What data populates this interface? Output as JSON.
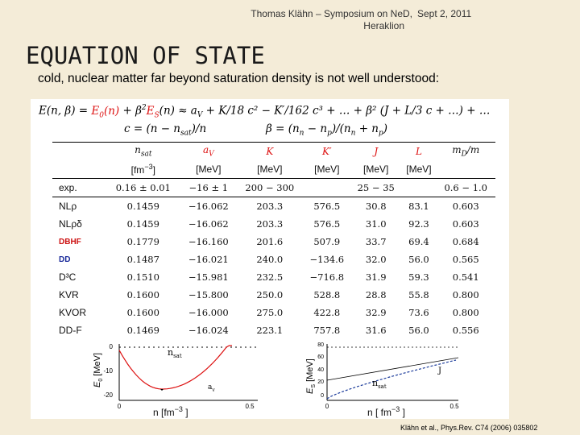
{
  "header": {
    "line1": "Thomas Klähn – Symposium on NeD,",
    "line2": "Heraklion",
    "date": "Sept 2, 2011"
  },
  "title": "EQUATION OF STATE",
  "subtitle": "cold, nuclear matter far beyond saturation density is not well understood:",
  "equations": {
    "eq1_lhs": "E(n, β) = ",
    "eq1_e0": "E",
    "eq1_e0_sub": "0",
    "eq1_e0_arg": "(n)",
    "eq1_plus": " + β",
    "eq1_beta_sup": "2",
    "eq1_es": "E",
    "eq1_es_sub": "S",
    "eq1_rest": "(n) ≈ a",
    "eq1_av_sub": "V",
    "eq1_tail": " + K/18 c² − K′/162 c³ + … + β² (J + L/3 c + …) + …",
    "eq2": "c = (n − n",
    "eq2_sub": "sat",
    "eq2_end": ")/n",
    "eq3": "β = (n",
    "eq3_rest": " − n",
    "eq3_end": ")/(n",
    "eq3_end2": " + n",
    "eq3_close": ")"
  },
  "table": {
    "headers": [
      "n_sat",
      "a_V",
      "K",
      "K′",
      "J",
      "L",
      "m_D/m"
    ],
    "header_display": [
      "n",
      "a",
      "K",
      "K′",
      "J",
      "L",
      "m"
    ],
    "header_subs": [
      "sat",
      "V",
      "",
      "",
      "",
      "",
      "D"
    ],
    "header_suffix": [
      "",
      "",
      "",
      "",
      "",
      "",
      "/m"
    ],
    "units": [
      "[fm",
      "[MeV]",
      "[MeV]",
      "[MeV]",
      "[MeV]",
      "[MeV]",
      ""
    ],
    "unit_sup": "−3",
    "unit_close": "]",
    "exp_row": {
      "label": "exp.",
      "nsat": "0.16 ± 0.01",
      "av": "−16 ± 1",
      "k": "200 − 300",
      "j": "25 − 35",
      "mdm": "0.6 − 1.0"
    },
    "rows": [
      {
        "label": "NLρ",
        "vals": [
          "0.1459",
          "−16.062",
          "203.3",
          "576.5",
          "30.8",
          "83.1",
          "0.603"
        ],
        "style": "plain"
      },
      {
        "label": "NLρδ",
        "vals": [
          "0.1459",
          "−16.062",
          "203.3",
          "576.5",
          "31.0",
          "92.3",
          "0.603"
        ],
        "style": "plain"
      },
      {
        "label": "DBHF",
        "vals": [
          "0.1779",
          "−16.160",
          "201.6",
          "507.9",
          "33.7",
          "69.4",
          "0.684"
        ],
        "style": "red"
      },
      {
        "label": "DD",
        "vals": [
          "0.1487",
          "−16.021",
          "240.0",
          "−134.6",
          "32.0",
          "56.0",
          "0.565"
        ],
        "style": "blue"
      },
      {
        "label": "D³C",
        "vals": [
          "0.1510",
          "−15.981",
          "232.5",
          "−716.8",
          "31.9",
          "59.3",
          "0.541"
        ],
        "style": "plain"
      },
      {
        "label": "KVR",
        "vals": [
          "0.1600",
          "−15.800",
          "250.0",
          "528.8",
          "28.8",
          "55.8",
          "0.800"
        ],
        "style": "plain"
      },
      {
        "label": "KVOR",
        "vals": [
          "0.1600",
          "−16.000",
          "275.0",
          "422.8",
          "32.9",
          "73.6",
          "0.800"
        ],
        "style": "plain"
      },
      {
        "label": "DD-F",
        "vals": [
          "0.1469",
          "−16.024",
          "223.1",
          "757.8",
          "31.6",
          "56.0",
          "0.556"
        ],
        "style": "plain"
      }
    ]
  },
  "plots": {
    "left": {
      "ylabel": "E",
      "ylabel_sub": "0",
      "ylabel_unit": "[MeV]",
      "yticks": [
        "0",
        "-10",
        "-20"
      ],
      "xticks": [
        "0",
        "0.5"
      ],
      "xlabel": "n [fm",
      "xlabel_sup": "−3",
      "xlabel_close": "]",
      "ann_nsat": "n",
      "ann_nsat_sub": "sat",
      "ann_av": "a",
      "ann_av_sub": "v"
    },
    "right": {
      "ylabel": "E",
      "ylabel_sub": "S",
      "ylabel_unit": "[MeV]",
      "yticks": [
        "80",
        "60",
        "40",
        "20",
        "0"
      ],
      "xticks": [
        "0",
        "0.5"
      ],
      "xlabel": "n [ fm",
      "xlabel_sup": "−3",
      "xlabel_close": "]",
      "ann_nsat": "n",
      "ann_nsat_sub": "sat",
      "ann_j": "J"
    }
  },
  "citation": "Klähn et al., Phys.Rev. C74 (2006) 035802"
}
